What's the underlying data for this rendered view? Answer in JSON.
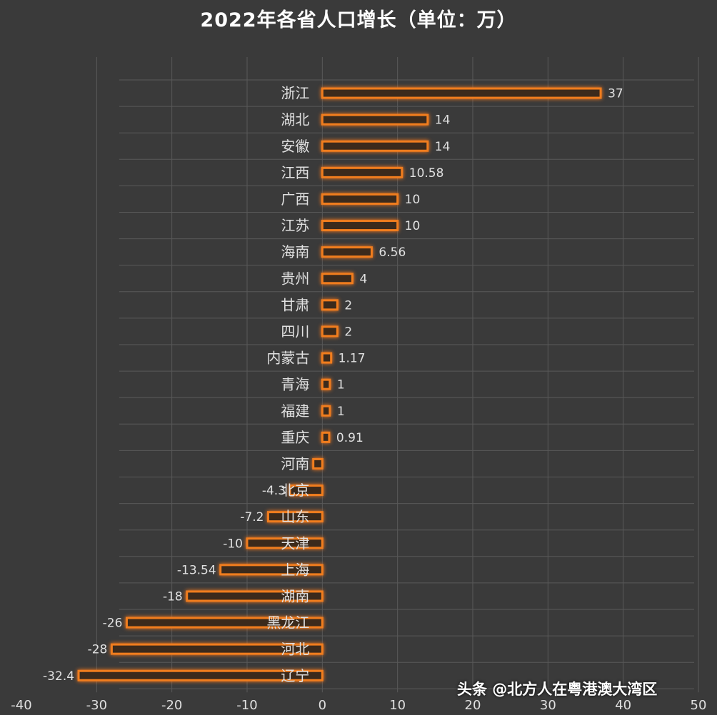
{
  "title": "2022年各省人口增长（单位：万）",
  "watermark": "头条 @北方人在粤港澳大湾区",
  "colors": {
    "background": "#3a3a3a",
    "bar_fill": "#3b2a1c",
    "bar_stroke": "#f07d1e",
    "grid": "#595959",
    "text": "#e0e0e0"
  },
  "chart_data": {
    "type": "bar",
    "orientation": "horizontal",
    "title": "2022年各省人口增长（单位：万）",
    "xlim": [
      -40,
      50
    ],
    "x_ticks": [
      -40,
      -30,
      -20,
      -10,
      0,
      10,
      20,
      30,
      40,
      50
    ],
    "grid": true,
    "categories": [
      "浙江",
      "湖北",
      "安徽",
      "江西",
      "广西",
      "江苏",
      "海南",
      "贵州",
      "甘肃",
      "四川",
      "内蒙古",
      "青海",
      "福建",
      "重庆",
      "河南",
      "北京",
      "山东",
      "天津",
      "上海",
      "湖南",
      "黑龙江",
      "河北",
      "辽宁"
    ],
    "values": [
      37,
      14,
      14,
      10.58,
      10,
      10,
      6.56,
      4,
      2,
      2,
      1.17,
      1,
      1,
      0.91,
      -1.2,
      -4.3,
      -7.2,
      -10,
      -13.54,
      -18,
      -26,
      -28,
      -32.4
    ],
    "data_labels": [
      "37",
      "14",
      "14",
      "10.58",
      "10",
      "10",
      "6.56",
      "4",
      "2",
      "2",
      "1.17",
      "1",
      "1",
      "0.91",
      "",
      "-4.3",
      "-7.2",
      "-10",
      "-13.54",
      "-18",
      "-26",
      "-28",
      "-32.4"
    ]
  }
}
